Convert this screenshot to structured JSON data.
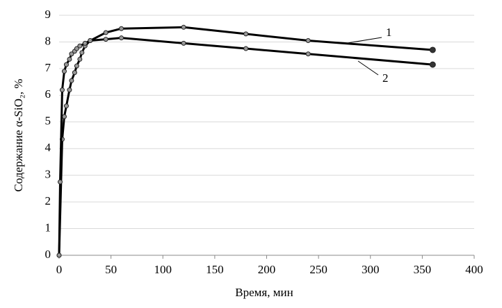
{
  "chart_data": {
    "type": "line",
    "xlabel": "Время, мин",
    "ylabel": "Содержание α-SiO₂, %",
    "xlim": [
      0,
      400
    ],
    "xticks": [
      0,
      50,
      100,
      150,
      200,
      250,
      300,
      350,
      400
    ],
    "ylim": [
      0,
      9
    ],
    "yticks": [
      0,
      1,
      2,
      3,
      4,
      5,
      6,
      7,
      8,
      9
    ],
    "grid": true,
    "series": [
      {
        "name": "1",
        "color": "#000000",
        "x": [
          0,
          3,
          5,
          7,
          10,
          12,
          15,
          17,
          20,
          22,
          25,
          30,
          45,
          60,
          120,
          180,
          240,
          360
        ],
        "values": [
          0,
          4.35,
          5.2,
          5.6,
          6.2,
          6.55,
          6.85,
          7.1,
          7.35,
          7.6,
          7.85,
          8.05,
          8.35,
          8.5,
          8.55,
          8.3,
          8.05,
          7.7
        ]
      },
      {
        "name": "2",
        "color": "#000000",
        "x": [
          0,
          1,
          3,
          5,
          7,
          10,
          12,
          15,
          17,
          20,
          25,
          30,
          45,
          60,
          120,
          180,
          240,
          360
        ],
        "values": [
          0,
          2.75,
          6.2,
          6.9,
          7.15,
          7.35,
          7.55,
          7.65,
          7.75,
          7.85,
          7.95,
          8.05,
          8.1,
          8.15,
          7.95,
          7.75,
          7.55,
          7.15
        ]
      }
    ]
  }
}
